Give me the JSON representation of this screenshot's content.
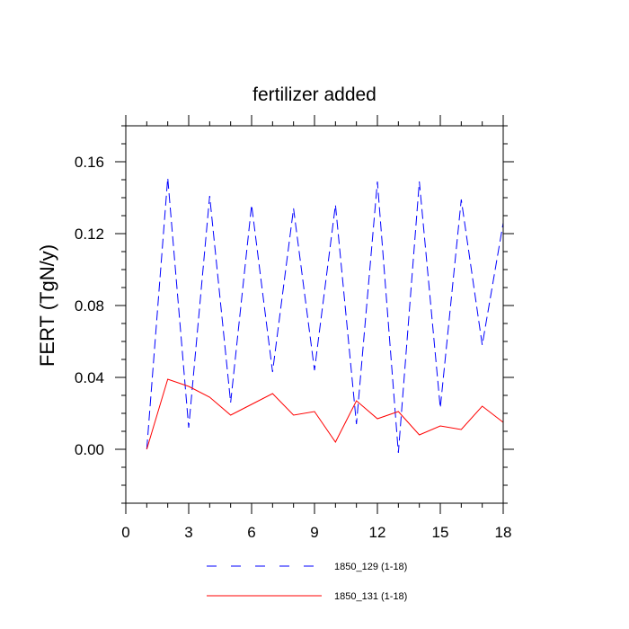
{
  "chart_data": {
    "type": "line",
    "title": "fertilizer added",
    "xlabel": "",
    "ylabel": "FERT  (TgN/y)",
    "xlim": [
      0,
      18
    ],
    "ylim": [
      -0.03,
      0.18
    ],
    "x_ticks": [
      0,
      3,
      6,
      9,
      12,
      15,
      18
    ],
    "x_tick_labels": [
      "0",
      "3",
      "6",
      "9",
      "12",
      "15",
      "18"
    ],
    "y_ticks": [
      0.0,
      0.04,
      0.08,
      0.12,
      0.16
    ],
    "y_tick_labels": [
      "0.00",
      "0.04",
      "0.08",
      "0.12",
      "0.16"
    ],
    "grid": false,
    "legend_position": "bottom",
    "series": [
      {
        "name": "1850_129 (1-18)",
        "color": "#0000ff",
        "style": "dashed",
        "x": [
          1,
          2,
          3,
          4,
          5,
          6,
          7,
          8,
          9,
          10,
          11,
          12,
          13,
          14,
          15,
          16,
          17,
          18
        ],
        "values": [
          0.0,
          0.151,
          0.012,
          0.141,
          0.026,
          0.136,
          0.043,
          0.134,
          0.044,
          0.136,
          0.014,
          0.149,
          -0.002,
          0.149,
          0.023,
          0.139,
          0.058,
          0.126
        ]
      },
      {
        "name": "1850_131 (1-18)",
        "color": "#ff0000",
        "style": "solid",
        "x": [
          1,
          2,
          3,
          4,
          5,
          6,
          7,
          8,
          9,
          10,
          11,
          12,
          13,
          14,
          15,
          16,
          17,
          18
        ],
        "values": [
          0.0,
          0.039,
          0.035,
          0.029,
          0.019,
          0.025,
          0.031,
          0.019,
          0.021,
          0.004,
          0.027,
          0.017,
          0.021,
          0.008,
          0.013,
          0.011,
          0.024,
          0.015
        ]
      }
    ]
  }
}
